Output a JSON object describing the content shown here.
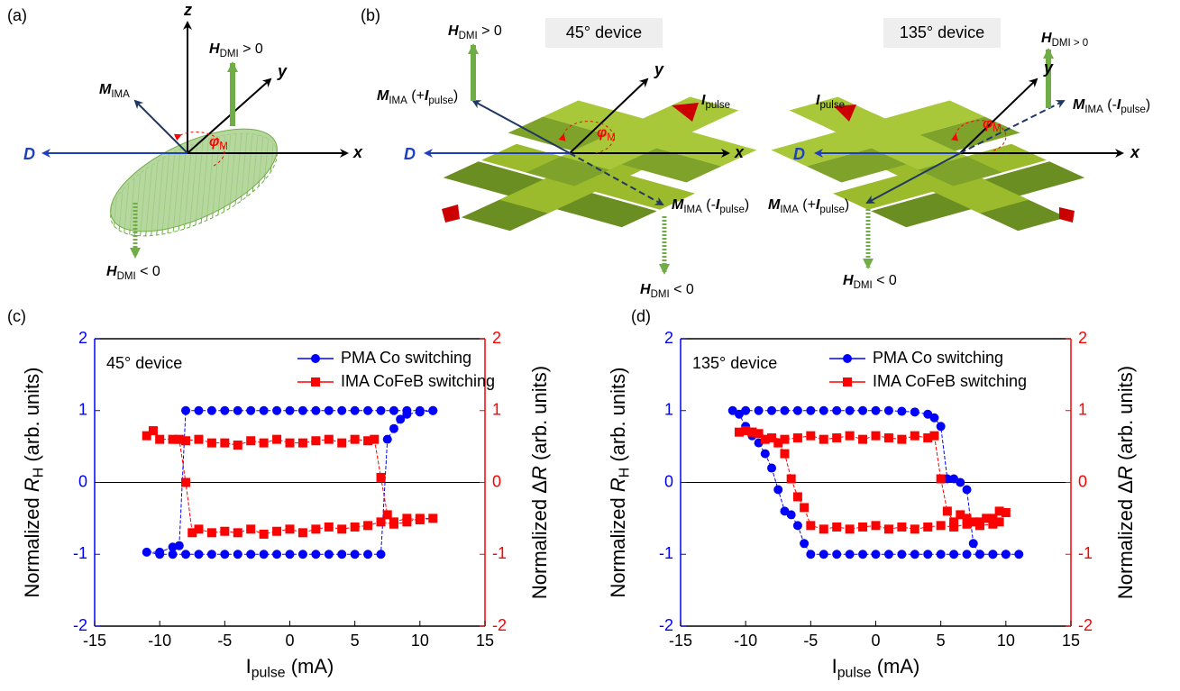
{
  "diagram_a": {
    "panel": "(a)",
    "z": "z",
    "y": "y",
    "x": "x",
    "D": "D",
    "M": [
      "M",
      "IMA"
    ],
    "H_up": [
      "H",
      "DMI",
      " > 0"
    ],
    "H_down": [
      "H",
      "DMI",
      " < 0"
    ],
    "phi": [
      "φ",
      "M"
    ]
  },
  "diagram_b": {
    "panel": "(b)",
    "left": {
      "device": "45° device",
      "H_up": [
        "H",
        "DMI",
        " > 0"
      ],
      "M_plus": [
        "M",
        "IMA",
        " (+",
        "I",
        "pulse",
        ")"
      ],
      "I": [
        "I",
        "pulse"
      ],
      "M_minus": [
        "M",
        "IMA",
        " (-",
        "I",
        "pulse",
        ")"
      ],
      "H_down": [
        "H",
        "DMI",
        " < 0"
      ],
      "y": "y",
      "x": "x",
      "D": "D",
      "phi": [
        "φ",
        "M"
      ]
    },
    "right": {
      "device": "135° device",
      "H_up": [
        "H",
        "DMI > 0"
      ],
      "M_plus": [
        "M",
        "IMA",
        " (+",
        "I",
        "pulse",
        ")"
      ],
      "I": [
        "I",
        "pulse"
      ],
      "M_minus": [
        "M",
        "IMA",
        " (-",
        "I",
        "pulse",
        ")"
      ],
      "H_down": [
        "H",
        "DMI",
        " < 0"
      ],
      "y": "y",
      "x": "x",
      "D": "D",
      "phi": [
        "φ",
        "M"
      ]
    }
  },
  "chart_data": [
    {
      "type": "line",
      "panel": "(c)",
      "annotation": "45° device",
      "xlabel": [
        "I",
        "pulse",
        " (mA)"
      ],
      "ylabel": [
        "Normalized ",
        "R",
        "H",
        " (arb. units)"
      ],
      "y2label": [
        "Normalized Δ",
        "R",
        " (arb. units)"
      ],
      "xlim": [
        -15,
        15
      ],
      "xticks": [
        -15,
        -10,
        -5,
        0,
        5,
        10,
        15
      ],
      "ylim": [
        -2,
        2
      ],
      "yticks": [
        -2,
        -1,
        0,
        1,
        2
      ],
      "y2lim": [
        -2,
        2
      ],
      "y2ticks": [
        -2,
        -1,
        0,
        1,
        2
      ],
      "ycolor": "#0000ff",
      "y2color": "#ff0000",
      "reference_line": 0,
      "series": [
        {
          "name": "PMA Co switching",
          "color": "#0000ff",
          "marker": "circle",
          "x": [
            11,
            10,
            9,
            8,
            7,
            6,
            5,
            4,
            3,
            2,
            1,
            0,
            -1,
            -2,
            -3,
            -4,
            -5,
            -6,
            -7,
            -8,
            -8.5,
            -9,
            -10,
            -11,
            -10,
            -9,
            -8,
            -7,
            -6,
            -5,
            -4,
            -3,
            -2,
            -1,
            0,
            1,
            2,
            3,
            4,
            5,
            6,
            7,
            7.5,
            8,
            8.5,
            9,
            10,
            11
          ],
          "values": [
            1,
            1,
            1,
            1,
            1,
            1,
            1,
            1,
            1,
            1,
            1,
            1,
            1,
            1,
            1,
            1,
            1,
            1,
            1,
            1,
            -0.88,
            -0.9,
            -0.97,
            -0.97,
            -1,
            -1,
            -1,
            -1,
            -1,
            -1,
            -1,
            -1,
            -1,
            -1,
            -1,
            -1,
            -1,
            -1,
            -1,
            -1,
            -1,
            -1,
            0.6,
            0.75,
            0.88,
            0.95,
            0.98,
            1
          ]
        },
        {
          "name": "IMA CoFeB switching",
          "color": "#ff0000",
          "marker": "square",
          "axis": "y2",
          "x": [
            -11,
            -10.5,
            -10,
            -9,
            -8,
            -7,
            -6,
            -5,
            -4,
            -3,
            -2,
            -1,
            0,
            1,
            2,
            3,
            4,
            5,
            6,
            6.5,
            7,
            7.5,
            8,
            9,
            10,
            11,
            10,
            9,
            8,
            7,
            6,
            5,
            4,
            3,
            2,
            1,
            0,
            -1,
            -2,
            -3,
            -4,
            -5,
            -6,
            -7,
            -7.5,
            -8,
            -8.5
          ],
          "values": [
            0.65,
            0.72,
            0.6,
            0.6,
            0.58,
            0.6,
            0.55,
            0.55,
            0.52,
            0.58,
            0.55,
            0.6,
            0.55,
            0.55,
            0.58,
            0.6,
            0.55,
            0.6,
            0.58,
            0.6,
            0.07,
            -0.45,
            -0.55,
            -0.5,
            -0.52,
            -0.5,
            -0.5,
            -0.55,
            -0.58,
            -0.55,
            -0.6,
            -0.62,
            -0.65,
            -0.62,
            -0.65,
            -0.7,
            -0.65,
            -0.68,
            -0.72,
            -0.65,
            -0.7,
            -0.68,
            -0.7,
            -0.65,
            -0.7,
            0,
            0.6
          ]
        }
      ]
    },
    {
      "type": "line",
      "panel": "(d)",
      "annotation": "135° device",
      "xlabel": [
        "I",
        "pulse",
        " (mA)"
      ],
      "ylabel": [
        "Normalized ",
        "R",
        "H",
        " (arb. units)"
      ],
      "y2label": [
        "Normalized Δ",
        "R",
        " (arb. units)"
      ],
      "xlim": [
        -15,
        15
      ],
      "xticks": [
        -15,
        -10,
        -5,
        0,
        5,
        10,
        15
      ],
      "ylim": [
        -2,
        2
      ],
      "yticks": [
        -2,
        -1,
        0,
        1,
        2
      ],
      "y2lim": [
        -2,
        2
      ],
      "y2ticks": [
        -2,
        -1,
        0,
        1,
        2
      ],
      "ycolor": "#0000ff",
      "y2color": "#ff0000",
      "reference_line": 0,
      "series": [
        {
          "name": "PMA Co switching",
          "color": "#0000ff",
          "marker": "circle",
          "x": [
            -11,
            -10,
            -9,
            -8,
            -7,
            -6,
            -5,
            -4,
            -3,
            -2,
            -1,
            0,
            1,
            2,
            3,
            4,
            4.5,
            5,
            5.5,
            6,
            6.5,
            7,
            7.5,
            8,
            9,
            10,
            11,
            10,
            9,
            8,
            7,
            6,
            5,
            4,
            3,
            2,
            1,
            0,
            -1,
            -2,
            -3,
            -4,
            -5,
            -5.5,
            -6,
            -6.5,
            -7,
            -7.5,
            -8,
            -8.5,
            -9,
            -9.5,
            -10,
            -10.5
          ],
          "values": [
            1,
            1,
            1,
            1,
            1,
            1,
            1,
            1,
            1,
            1,
            1,
            1,
            1,
            0.99,
            0.98,
            0.95,
            0.9,
            0.78,
            0.05,
            0.05,
            0,
            -0.1,
            -0.85,
            -1,
            -1,
            -1,
            -1,
            -1,
            -1,
            -1,
            -1,
            -1,
            -1,
            -1,
            -1,
            -1,
            -1,
            -1,
            -1,
            -1,
            -1,
            -1,
            -1,
            -0.85,
            -0.6,
            -0.45,
            -0.4,
            -0.1,
            0.2,
            0.4,
            0.55,
            0.65,
            0.78,
            0.95
          ]
        },
        {
          "name": "IMA CoFeB switching",
          "color": "#ff0000",
          "marker": "square",
          "axis": "y2",
          "x": [
            -10.5,
            -10,
            -9.5,
            -9,
            -8,
            -7,
            -6,
            -5,
            -4,
            -3,
            -2,
            -1,
            0,
            1,
            2,
            3,
            4,
            4.5,
            5,
            5.5,
            6,
            6.5,
            7,
            7.5,
            8,
            8.5,
            9,
            9.5,
            10,
            9.5,
            9,
            8,
            7,
            6,
            5,
            4,
            3,
            2,
            1,
            0,
            -1,
            -2,
            -3,
            -4,
            -5,
            -5.5,
            -6,
            -6.5,
            -7,
            -7.5,
            -8.5,
            -9.5
          ],
          "values": [
            0.7,
            0.72,
            0.7,
            0.68,
            0.62,
            0.6,
            0.62,
            0.65,
            0.6,
            0.62,
            0.65,
            0.6,
            0.65,
            0.62,
            0.6,
            0.65,
            0.62,
            0.65,
            0.05,
            -0.4,
            -0.55,
            -0.45,
            -0.5,
            -0.55,
            -0.55,
            -0.5,
            -0.5,
            -0.4,
            -0.42,
            -0.55,
            -0.58,
            -0.6,
            -0.58,
            -0.62,
            -0.6,
            -0.62,
            -0.65,
            -0.62,
            -0.65,
            -0.6,
            -0.62,
            -0.65,
            -0.62,
            -0.65,
            -0.6,
            -0.35,
            -0.2,
            0.05,
            0.4,
            0.55,
            0.6,
            0.7
          ]
        }
      ]
    }
  ]
}
